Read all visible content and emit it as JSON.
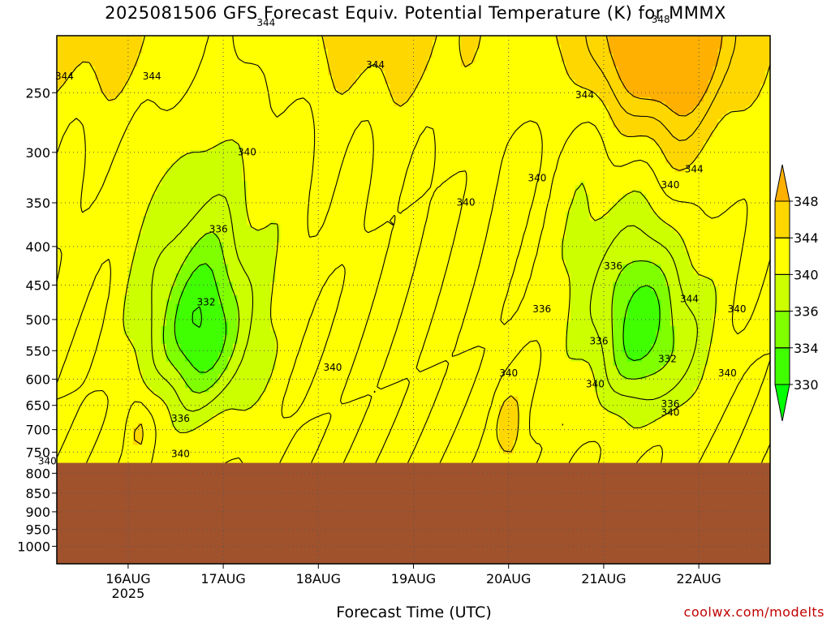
{
  "page": {
    "title": "2025081506 GFS Forecast Equiv. Potential Temperature (K) for MMMX",
    "credit": "coolwx.com/modelts"
  },
  "chart_data": {
    "type": "heatmap",
    "title": "2025081506 GFS Forecast Equiv. Potential Temperature (K) for MMMX",
    "xlabel": "Forecast Time (UTC)",
    "ylabel": "",
    "x_range_days": [
      "2025-08-15T06Z",
      "2025-08-22T18Z"
    ],
    "x_ticks": [
      {
        "label": "16AUG",
        "sublabel": "2025",
        "day": 16
      },
      {
        "label": "17AUG",
        "sublabel": "",
        "day": 17
      },
      {
        "label": "18AUG",
        "sublabel": "",
        "day": 18
      },
      {
        "label": "19AUG",
        "sublabel": "",
        "day": 19
      },
      {
        "label": "20AUG",
        "sublabel": "",
        "day": 20
      },
      {
        "label": "21AUG",
        "sublabel": "",
        "day": 21
      },
      {
        "label": "22AUG",
        "sublabel": "",
        "day": 22
      }
    ],
    "y_ticks": [
      "250",
      "300",
      "350",
      "400",
      "450",
      "500",
      "550",
      "600",
      "650",
      "700",
      "750",
      "800",
      "850",
      "900",
      "950",
      "1000"
    ],
    "y_scale": "log-pressure",
    "grid": true,
    "terrain_below_hpa": 775,
    "terrain_color": "#a0522d",
    "legend": {
      "position": "right",
      "levels": [
        330,
        334,
        336,
        340,
        344,
        348
      ],
      "labels": [
        "330",
        "334",
        "336",
        "340",
        "344",
        "348"
      ],
      "colors": [
        "#00ff00",
        "#40ff00",
        "#80ff00",
        "#ccff00",
        "#ffff00",
        "#ffd700",
        "#ffb000"
      ]
    },
    "contour_labels": [
      {
        "text": "344",
        "day": 15.33,
        "hpa": 238
      },
      {
        "text": "344",
        "day": 16.25,
        "hpa": 238
      },
      {
        "text": "344",
        "day": 17.45,
        "hpa": 202
      },
      {
        "text": "344",
        "day": 18.6,
        "hpa": 230
      },
      {
        "text": "344",
        "day": 20.8,
        "hpa": 252
      },
      {
        "text": "344",
        "day": 21.95,
        "hpa": 316
      },
      {
        "text": "348",
        "day": 21.6,
        "hpa": 200
      },
      {
        "text": "340",
        "day": 17.25,
        "hpa": 300
      },
      {
        "text": "340",
        "day": 19.55,
        "hpa": 350
      },
      {
        "text": "340",
        "day": 20.3,
        "hpa": 325
      },
      {
        "text": "340",
        "day": 21.7,
        "hpa": 332
      },
      {
        "text": "340",
        "day": 18.15,
        "hpa": 580
      },
      {
        "text": "340",
        "day": 20.0,
        "hpa": 590
      },
      {
        "text": "340",
        "day": 15.15,
        "hpa": 772
      },
      {
        "text": "340",
        "day": 16.55,
        "hpa": 755
      },
      {
        "text": "340",
        "day": 20.91,
        "hpa": 610
      },
      {
        "text": "340",
        "day": 21.7,
        "hpa": 665
      },
      {
        "text": "340",
        "day": 22.4,
        "hpa": 485
      },
      {
        "text": "340",
        "day": 22.3,
        "hpa": 590
      },
      {
        "text": "336",
        "day": 16.95,
        "hpa": 380
      },
      {
        "text": "336",
        "day": 21.1,
        "hpa": 425
      },
      {
        "text": "336",
        "day": 20.35,
        "hpa": 485
      },
      {
        "text": "336",
        "day": 20.95,
        "hpa": 535
      },
      {
        "text": "336",
        "day": 16.55,
        "hpa": 678
      },
      {
        "text": "336",
        "day": 21.7,
        "hpa": 648
      },
      {
        "text": "332",
        "day": 16.82,
        "hpa": 475
      },
      {
        "text": "332",
        "day": 21.67,
        "hpa": 565
      },
      {
        "text": "344",
        "day": 21.9,
        "hpa": 470
      }
    ],
    "field_centers": [
      {
        "value": 332,
        "day": 16.75,
        "hpa": 520
      },
      {
        "value": 333,
        "day": 21.45,
        "hpa": 520
      },
      {
        "value": 346,
        "day": 21.7,
        "hpa": 200
      }
    ]
  }
}
